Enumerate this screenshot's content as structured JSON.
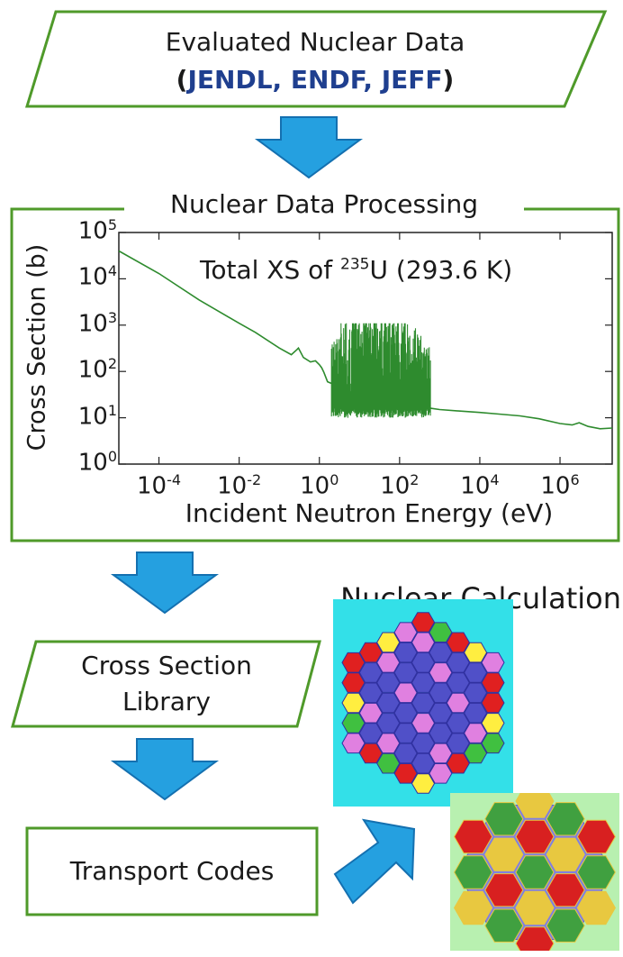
{
  "top_box": {
    "line1": "Evaluated Nuclear Data",
    "open_paren": "(",
    "libraries": "JENDL, ENDF, JEFF",
    "close_paren": ")"
  },
  "processing": {
    "title": "Nuclear Data Processing"
  },
  "chart_data": {
    "type": "line",
    "title": "Total XS of 235U (293.6 K)",
    "title_parts": {
      "prefix": "Total XS of ",
      "superscript": "235",
      "suffix": "U (293.6 K)"
    },
    "xlabel": "Incident Neutron Energy (eV)",
    "ylabel": "Cross Section (b)",
    "x_scale": "log",
    "y_scale": "log",
    "xlim": [
      1e-05,
      20000000
    ],
    "ylim": [
      1,
      100000
    ],
    "x_ticks": [
      {
        "base": "10",
        "exp": "-4",
        "value": 0.0001
      },
      {
        "base": "10",
        "exp": "-2",
        "value": 0.01
      },
      {
        "base": "10",
        "exp": "0",
        "value": 1
      },
      {
        "base": "10",
        "exp": "2",
        "value": 100
      },
      {
        "base": "10",
        "exp": "4",
        "value": 10000
      },
      {
        "base": "10",
        "exp": "6",
        "value": 1000000
      }
    ],
    "y_ticks": [
      {
        "base": "10",
        "exp": "0",
        "value": 1
      },
      {
        "base": "10",
        "exp": "1",
        "value": 10
      },
      {
        "base": "10",
        "exp": "2",
        "value": 100
      },
      {
        "base": "10",
        "exp": "3",
        "value": 1000
      },
      {
        "base": "10",
        "exp": "4",
        "value": 10000
      },
      {
        "base": "10",
        "exp": "5",
        "value": 100000
      }
    ],
    "grid": false,
    "color": "#2e8b2e",
    "series": [
      {
        "x": [
          1e-05,
          0.0001,
          0.001,
          0.01,
          0.0253,
          0.1,
          0.2,
          0.28,
          0.3,
          0.4,
          0.6,
          0.8,
          1.0,
          1.14,
          1.3,
          1.6,
          2.0,
          3.0,
          5.0,
          8.0,
          15,
          25,
          50,
          100,
          200,
          400,
          600,
          1000,
          3000,
          10000,
          30000,
          100000,
          300000,
          1000000,
          2000000,
          3000000,
          5000000,
          10000000,
          20000000
        ],
        "y": [
          40000,
          13000,
          3500,
          1100,
          700,
          320,
          230,
          300,
          320,
          200,
          160,
          170,
          140,
          120,
          95,
          60,
          55,
          45,
          38,
          33,
          30,
          28,
          25,
          22,
          20,
          18,
          16,
          15,
          14,
          13,
          12,
          11,
          9.5,
          7.5,
          7.0,
          7.8,
          6.5,
          5.8,
          6.0
        ]
      }
    ],
    "resonance_region": {
      "x_min": 2,
      "x_max": 600,
      "y_max": 1100,
      "y_min": 10
    }
  },
  "library_box": {
    "line1": "Cross Section",
    "line2": "Library"
  },
  "transport_box": {
    "label": "Transport Codes"
  },
  "calc": {
    "label": "Nuclear Calculation"
  }
}
